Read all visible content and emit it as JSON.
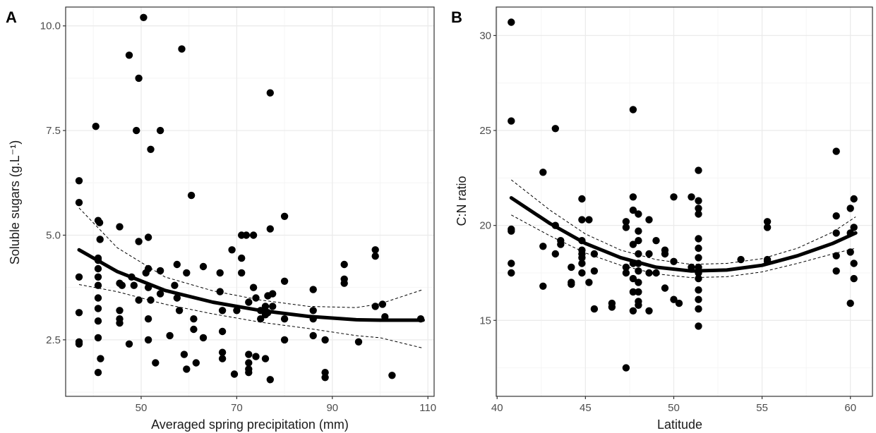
{
  "colors": {
    "point": "#000000",
    "fit": "#000000",
    "grid_major": "#ebebeb",
    "grid_minor": "#f5f5f5",
    "panel_border": "#333333"
  },
  "chart_data": [
    {
      "type": "scatter",
      "panel_label": "A",
      "xlabel": "Averaged spring precipitation (mm)",
      "ylabel": "Soluble sugars (g.L⁻¹)",
      "xlim": [
        34.2,
        111.3
      ],
      "ylim": [
        1.15,
        10.45
      ],
      "x_ticks": [
        50,
        70,
        90,
        110
      ],
      "x_tick_labels": [
        "50",
        "70",
        "90",
        "110"
      ],
      "y_ticks": [
        2.5,
        5.0,
        7.5,
        10.0
      ],
      "y_tick_labels": [
        "2.5",
        "5.0",
        "7.5",
        "10.0"
      ],
      "grid": true,
      "fit": {
        "x": [
          37,
          45,
          55,
          65,
          75,
          85,
          95,
          100,
          109
        ],
        "y": [
          4.65,
          4.13,
          3.68,
          3.4,
          3.2,
          3.06,
          2.98,
          2.97,
          2.97
        ],
        "ci_upper": [
          5.65,
          4.7,
          4.0,
          3.67,
          3.45,
          3.3,
          3.27,
          3.36,
          3.7
        ],
        "ci_lower": [
          3.82,
          3.65,
          3.35,
          3.12,
          2.92,
          2.77,
          2.6,
          2.55,
          2.3
        ]
      },
      "points": [
        [
          37,
          6.3
        ],
        [
          37,
          5.78
        ],
        [
          37,
          4.0
        ],
        [
          37,
          3.15
        ],
        [
          37,
          2.45
        ],
        [
          37,
          2.4
        ],
        [
          40.5,
          7.6
        ],
        [
          41,
          5.35
        ],
        [
          41,
          4.45
        ],
        [
          41,
          4.4
        ],
        [
          41,
          4.2
        ],
        [
          41,
          4.0
        ],
        [
          41,
          3.8
        ],
        [
          41,
          3.5
        ],
        [
          41,
          3.25
        ],
        [
          41,
          2.95
        ],
        [
          41,
          2.55
        ],
        [
          41,
          1.72
        ],
        [
          41.3,
          5.3
        ],
        [
          41.4,
          4.9
        ],
        [
          41.5,
          2.05
        ],
        [
          45.5,
          5.2
        ],
        [
          45.5,
          3.85
        ],
        [
          45.5,
          3.2
        ],
        [
          45.5,
          3.0
        ],
        [
          45.5,
          2.9
        ],
        [
          46,
          3.8
        ],
        [
          47.5,
          9.3
        ],
        [
          47.5,
          2.4
        ],
        [
          48,
          4.0
        ],
        [
          48.5,
          3.8
        ],
        [
          49,
          7.5
        ],
        [
          49.5,
          8.75
        ],
        [
          49.5,
          4.85
        ],
        [
          49.5,
          3.45
        ],
        [
          50.5,
          10.2
        ],
        [
          51,
          4.1
        ],
        [
          51.5,
          4.95
        ],
        [
          51.5,
          4.2
        ],
        [
          51.5,
          3.75
        ],
        [
          51.5,
          3.0
        ],
        [
          51.5,
          2.5
        ],
        [
          52,
          7.05
        ],
        [
          52,
          3.45
        ],
        [
          53,
          1.95
        ],
        [
          54,
          7.5
        ],
        [
          54,
          4.15
        ],
        [
          54,
          3.6
        ],
        [
          56,
          2.6
        ],
        [
          57,
          3.8
        ],
        [
          57.5,
          4.3
        ],
        [
          57.5,
          3.5
        ],
        [
          58,
          3.2
        ],
        [
          58.5,
          9.45
        ],
        [
          59,
          2.15
        ],
        [
          59.5,
          4.1
        ],
        [
          59.5,
          1.8
        ],
        [
          60.5,
          5.95
        ],
        [
          61,
          3.0
        ],
        [
          61,
          2.75
        ],
        [
          61.5,
          1.95
        ],
        [
          63,
          4.25
        ],
        [
          63,
          2.55
        ],
        [
          66.5,
          4.1
        ],
        [
          66.5,
          3.65
        ],
        [
          67,
          3.2
        ],
        [
          67,
          2.7
        ],
        [
          67,
          2.2
        ],
        [
          67,
          2.05
        ],
        [
          69,
          4.65
        ],
        [
          69.5,
          1.68
        ],
        [
          70,
          3.2
        ],
        [
          71,
          5.0
        ],
        [
          71,
          4.45
        ],
        [
          71,
          4.1
        ],
        [
          72,
          5.0
        ],
        [
          72.5,
          3.4
        ],
        [
          72.5,
          2.15
        ],
        [
          72.5,
          1.95
        ],
        [
          72.5,
          1.8
        ],
        [
          72.5,
          1.72
        ],
        [
          73.5,
          5.0
        ],
        [
          73.5,
          3.75
        ],
        [
          74,
          3.5
        ],
        [
          74,
          2.1
        ],
        [
          75,
          3.2
        ],
        [
          75,
          3.0
        ],
        [
          76,
          3.3
        ],
        [
          76,
          3.1
        ],
        [
          76,
          2.05
        ],
        [
          76.5,
          3.55
        ],
        [
          76.5,
          3.15
        ],
        [
          77,
          8.4
        ],
        [
          77,
          5.15
        ],
        [
          77,
          1.55
        ],
        [
          77.5,
          3.6
        ],
        [
          77.5,
          3.3
        ],
        [
          80,
          5.45
        ],
        [
          80,
          3.9
        ],
        [
          80,
          3.0
        ],
        [
          80,
          2.5
        ],
        [
          86,
          3.7
        ],
        [
          86,
          3.2
        ],
        [
          86,
          3.0
        ],
        [
          86,
          2.6
        ],
        [
          88.5,
          2.5
        ],
        [
          88.5,
          1.72
        ],
        [
          88.5,
          1.6
        ],
        [
          92.5,
          4.3
        ],
        [
          92.5,
          3.95
        ],
        [
          92.5,
          3.85
        ],
        [
          95.5,
          2.45
        ],
        [
          99,
          4.65
        ],
        [
          99,
          4.5
        ],
        [
          99,
          3.3
        ],
        [
          100.5,
          3.35
        ],
        [
          101,
          3.05
        ],
        [
          102.5,
          1.65
        ],
        [
          108.5,
          3.0
        ]
      ]
    },
    {
      "type": "scatter",
      "panel_label": "B",
      "xlabel": "Latitude",
      "ylabel": "C:N ratio",
      "xlim": [
        39.95,
        61.25
      ],
      "ylim": [
        11.0,
        31.5
      ],
      "x_ticks": [
        40,
        45,
        50,
        55,
        60
      ],
      "x_tick_labels": [
        "40",
        "45",
        "50",
        "55",
        "60"
      ],
      "y_ticks": [
        15,
        20,
        25,
        30
      ],
      "y_tick_labels": [
        "15",
        "20",
        "25",
        "30"
      ],
      "grid": true,
      "fit": {
        "x": [
          40.8,
          43,
          45,
          47,
          49,
          51,
          53,
          55,
          57,
          59,
          60.3
        ],
        "y": [
          21.45,
          20.1,
          19.05,
          18.3,
          17.8,
          17.6,
          17.65,
          17.9,
          18.4,
          19.05,
          19.6
        ],
        "ci_upper": [
          22.4,
          20.8,
          19.55,
          18.7,
          18.2,
          17.95,
          18.0,
          18.25,
          18.8,
          19.65,
          20.45
        ],
        "ci_lower": [
          20.55,
          19.45,
          18.55,
          17.9,
          17.45,
          17.25,
          17.3,
          17.55,
          18.0,
          18.5,
          18.8
        ]
      },
      "points": [
        [
          40.8,
          30.7
        ],
        [
          40.8,
          25.5
        ],
        [
          40.8,
          19.8
        ],
        [
          40.8,
          19.7
        ],
        [
          40.8,
          18.0
        ],
        [
          40.8,
          17.5
        ],
        [
          42.6,
          22.8
        ],
        [
          42.6,
          18.9
        ],
        [
          42.6,
          16.8
        ],
        [
          43.3,
          25.1
        ],
        [
          43.3,
          20.0
        ],
        [
          43.3,
          18.5
        ],
        [
          43.6,
          19.2
        ],
        [
          43.6,
          19.0
        ],
        [
          44.2,
          17.8
        ],
        [
          44.2,
          17.0
        ],
        [
          44.2,
          16.9
        ],
        [
          44.8,
          21.4
        ],
        [
          44.8,
          20.3
        ],
        [
          44.8,
          19.2
        ],
        [
          44.8,
          18.7
        ],
        [
          44.8,
          18.5
        ],
        [
          44.8,
          18.3
        ],
        [
          44.8,
          18.0
        ],
        [
          44.8,
          17.5
        ],
        [
          45.2,
          20.3
        ],
        [
          45.2,
          17.0
        ],
        [
          45.5,
          18.5
        ],
        [
          45.5,
          17.6
        ],
        [
          45.5,
          15.6
        ],
        [
          46.5,
          15.9
        ],
        [
          46.5,
          15.7
        ],
        [
          47.3,
          20.2
        ],
        [
          47.3,
          19.9
        ],
        [
          47.3,
          17.8
        ],
        [
          47.3,
          17.5
        ],
        [
          47.3,
          12.5
        ],
        [
          47.7,
          26.1
        ],
        [
          47.7,
          21.5
        ],
        [
          47.7,
          20.8
        ],
        [
          47.7,
          19.0
        ],
        [
          47.7,
          18.0
        ],
        [
          47.7,
          17.2
        ],
        [
          47.7,
          16.5
        ],
        [
          47.7,
          15.5
        ],
        [
          48.0,
          20.6
        ],
        [
          48.0,
          19.7
        ],
        [
          48.0,
          19.2
        ],
        [
          48.0,
          18.5
        ],
        [
          48.0,
          18.0
        ],
        [
          48.0,
          17.6
        ],
        [
          48.0,
          17.0
        ],
        [
          48.0,
          16.5
        ],
        [
          48.0,
          16.0
        ],
        [
          48.0,
          15.8
        ],
        [
          48.6,
          20.3
        ],
        [
          48.6,
          18.5
        ],
        [
          48.6,
          17.5
        ],
        [
          48.6,
          15.5
        ],
        [
          49.0,
          19.2
        ],
        [
          49.0,
          17.5
        ],
        [
          49.5,
          18.7
        ],
        [
          49.5,
          18.5
        ],
        [
          49.5,
          16.7
        ],
        [
          50.0,
          21.5
        ],
        [
          50.0,
          18.1
        ],
        [
          50.0,
          16.1
        ],
        [
          50.3,
          15.9
        ],
        [
          51.0,
          21.5
        ],
        [
          51.0,
          17.8
        ],
        [
          51.4,
          22.9
        ],
        [
          51.4,
          21.3
        ],
        [
          51.4,
          20.9
        ],
        [
          51.4,
          20.6
        ],
        [
          51.4,
          19.3
        ],
        [
          51.4,
          18.8
        ],
        [
          51.4,
          18.3
        ],
        [
          51.4,
          17.8
        ],
        [
          51.4,
          17.5
        ],
        [
          51.4,
          17.2
        ],
        [
          51.4,
          16.6
        ],
        [
          51.4,
          16.1
        ],
        [
          51.4,
          15.6
        ],
        [
          51.4,
          14.7
        ],
        [
          53.8,
          18.2
        ],
        [
          55.3,
          20.2
        ],
        [
          55.3,
          19.9
        ],
        [
          55.3,
          18.2
        ],
        [
          55.3,
          18.1
        ],
        [
          59.2,
          23.9
        ],
        [
          59.2,
          20.5
        ],
        [
          59.2,
          19.6
        ],
        [
          59.2,
          18.4
        ],
        [
          59.2,
          17.6
        ],
        [
          60.0,
          20.9
        ],
        [
          60.0,
          19.6
        ],
        [
          60.0,
          18.6
        ],
        [
          60.0,
          15.9
        ],
        [
          60.2,
          21.4
        ],
        [
          60.2,
          19.9
        ],
        [
          60.2,
          18.0
        ],
        [
          60.2,
          17.2
        ]
      ]
    }
  ]
}
